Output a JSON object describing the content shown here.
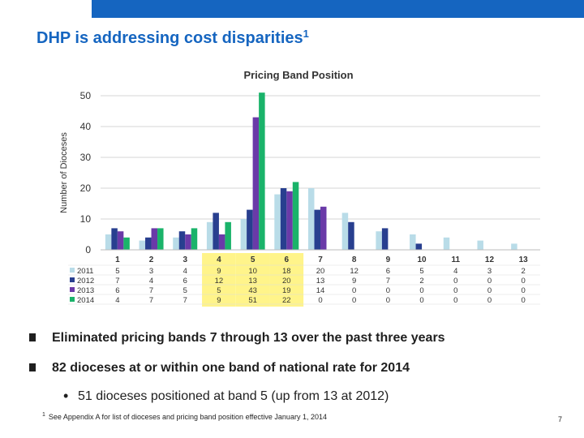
{
  "slide": {
    "title": "DHP is addressing cost disparities",
    "title_sup": "1",
    "bullets": [
      "Eliminated pricing bands 7 through 13 over the past three years",
      "82 dioceses at or within one band of national rate for 2014"
    ],
    "sub_bullet": "51 dioceses positioned at band 5 (up from 13 at 2012)",
    "footnote_mark": "1",
    "footnote": "See Appendix A for list of dioceses and pricing band position effective January 1, 2014",
    "page_number": "7",
    "colors": {
      "title": "#1565c0",
      "topbar": "#1565c0",
      "highlight": "#fff48a"
    }
  },
  "chart_data": {
    "type": "bar",
    "title": "Pricing Band Position",
    "ylabel": "Number of Dioceses",
    "xlabel": "",
    "ylim": [
      0,
      50
    ],
    "yticks": [
      0,
      10,
      20,
      30,
      40,
      50
    ],
    "grid": true,
    "categories": [
      "1",
      "2",
      "3",
      "4",
      "5",
      "6",
      "7",
      "8",
      "9",
      "10",
      "11",
      "12",
      "13"
    ],
    "highlight_categories": [
      "4",
      "5",
      "6"
    ],
    "series": [
      {
        "name": "2011",
        "color": "#b9dce8",
        "values": [
          5,
          3,
          4,
          9,
          10,
          18,
          20,
          12,
          6,
          5,
          4,
          3,
          2
        ]
      },
      {
        "name": "2012",
        "color": "#283f8f",
        "values": [
          7,
          4,
          6,
          12,
          13,
          20,
          13,
          9,
          7,
          2,
          0,
          0,
          0
        ]
      },
      {
        "name": "2013",
        "color": "#6a3aa8",
        "values": [
          6,
          7,
          5,
          5,
          43,
          19,
          14,
          0,
          0,
          0,
          0,
          0,
          0
        ]
      },
      {
        "name": "2014",
        "color": "#1ab36a",
        "values": [
          4,
          7,
          7,
          9,
          51,
          22,
          0,
          0,
          0,
          0,
          0,
          0,
          0
        ]
      }
    ]
  }
}
